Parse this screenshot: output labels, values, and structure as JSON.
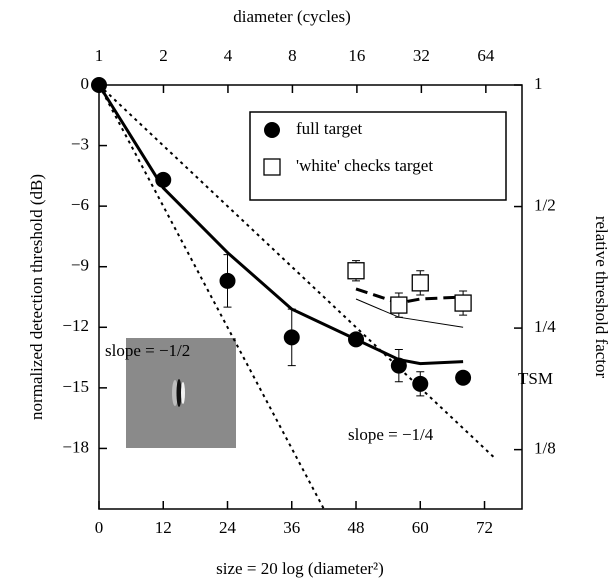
{
  "chart_data": {
    "type": "line",
    "x_label": "size = 20 log (diameter²)",
    "y_label": "normalized detection threshold (dB)",
    "x2_label": "diameter (cycles)",
    "y2_label": "relative threshold factor",
    "xlim": [
      0,
      79
    ],
    "xticks": [
      0,
      12,
      24,
      36,
      48,
      60,
      72
    ],
    "ylim": [
      -21,
      0
    ],
    "yticks": [
      0,
      {
        "value": -3,
        "label": "−3"
      },
      {
        "value": -6,
        "label": "−6"
      },
      {
        "value": -9,
        "label": "−9"
      },
      {
        "value": -12,
        "label": "−12"
      },
      {
        "value": -15,
        "label": "−15"
      },
      {
        "value": -18,
        "label": "−18"
      }
    ],
    "x2scale": "log",
    "x2lim": [
      1,
      94.4
    ],
    "x2ticks": [
      1,
      2,
      4,
      8,
      16,
      32,
      64
    ],
    "y2scale": "log",
    "y2lim": [
      0.0891,
      1
    ],
    "y2ticks": [
      1,
      {
        "value": 0.5,
        "label": "1/2"
      },
      {
        "value": 0.25,
        "label": "1/4"
      },
      {
        "value": 0.125,
        "label": "1/8"
      }
    ],
    "series": [
      {
        "name": "full target",
        "marker": "circle",
        "color": "#000000",
        "x": [
          0,
          12,
          24,
          36,
          48,
          56,
          60,
          68
        ],
        "values": [
          0,
          -4.7,
          -9.7,
          -12.5,
          -12.6,
          -13.9,
          -14.8,
          -14.5
        ],
        "errors": [
          0,
          0.3,
          1.3,
          1.4,
          0.2,
          0.8,
          0.6,
          0.3
        ]
      },
      {
        "name": "'white' checks target",
        "marker": "square",
        "color": "#000000",
        "x": [
          48,
          56,
          60,
          68
        ],
        "values": [
          -9.2,
          -10.9,
          -9.8,
          -10.8
        ],
        "errors": [
          0.5,
          0.6,
          0.6,
          0.6
        ]
      },
      {
        "line": "solid",
        "width": 3,
        "color": "#000000",
        "x": [
          0,
          12,
          24,
          36,
          48,
          56,
          60,
          68
        ],
        "values": [
          0,
          -5.1,
          -8.3,
          -11.1,
          -12.6,
          -13.6,
          -13.8,
          -13.7
        ]
      },
      {
        "line": "solid",
        "width": 1,
        "color": "#000000",
        "x": [
          48,
          56,
          68
        ],
        "values": [
          -10.6,
          -11.5,
          -12.0
        ]
      },
      {
        "line": "dashed",
        "width": 3,
        "color": "#000000",
        "x": [
          48,
          56,
          60,
          68
        ],
        "values": [
          -10.1,
          -10.8,
          -10.6,
          -10.5
        ]
      },
      {
        "line": "dotted",
        "width": 2,
        "color": "#000000",
        "x": [
          0,
          42
        ],
        "values": [
          0,
          -21
        ]
      },
      {
        "line": "dotted",
        "width": 2,
        "color": "#000000",
        "x": [
          0,
          74
        ],
        "values": [
          0,
          -18.5
        ]
      }
    ],
    "annotations": [
      "slope = −1/2",
      "slope = −1/4",
      "TSM"
    ]
  }
}
